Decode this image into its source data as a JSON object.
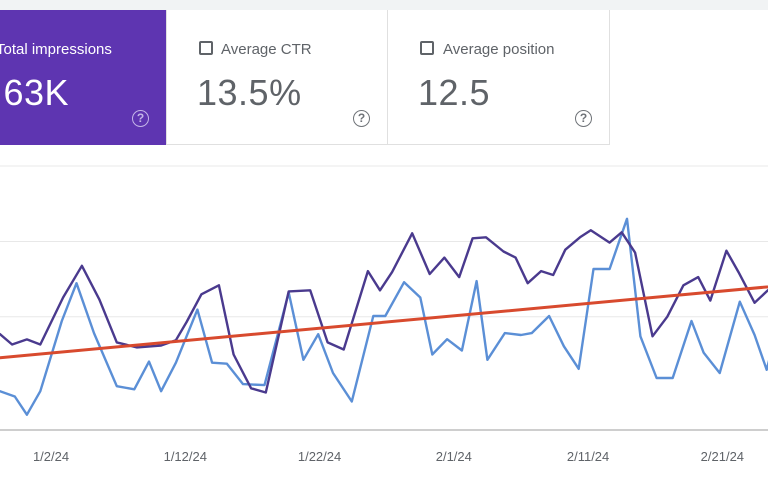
{
  "metrics": [
    {
      "label": "Total impressions",
      "value": ".63K",
      "selected": true,
      "help_icon": "help-circle-icon",
      "color": "#5e35b1"
    },
    {
      "label": "Average CTR",
      "value": "13.5%",
      "selected": false,
      "help_icon": "help-circle-icon"
    },
    {
      "label": "Average position",
      "value": "12.5",
      "selected": false,
      "help_icon": "help-circle-icon"
    }
  ],
  "help_glyph": "?",
  "colors": {
    "impressions": "#4a3a8e",
    "position": "#5b8fd6",
    "trend": "#d84a2e",
    "grid": "#e8e8e8",
    "axis": "#9e9e9e"
  },
  "chart_data": {
    "type": "line",
    "x_tick_labels": [
      "1/2/24",
      "1/12/24",
      "1/22/24",
      "2/1/24",
      "2/11/24",
      "2/21/24"
    ],
    "x_range_days": [
      -3.8,
      53.4
    ],
    "x_tick_days": [
      0,
      10,
      20,
      30,
      40,
      50
    ],
    "y_range": [
      0,
      100
    ],
    "grid": "horizontal",
    "series": [
      {
        "key": "impressions",
        "values": [
          [
            -3.8,
            36.3
          ],
          [
            -2.9,
            32.4
          ],
          [
            -1.8,
            34.3
          ],
          [
            -0.8,
            32.4
          ],
          [
            0.9,
            50.2
          ],
          [
            2.3,
            62.2
          ],
          [
            3.6,
            49.4
          ],
          [
            4.9,
            33.2
          ],
          [
            6.4,
            31.3
          ],
          [
            8.2,
            32.0
          ],
          [
            9.3,
            34.0
          ],
          [
            10.1,
            40.9
          ],
          [
            11.2,
            51.4
          ],
          [
            12.5,
            54.8
          ],
          [
            13.6,
            28.6
          ],
          [
            14.9,
            15.8
          ],
          [
            16.0,
            14.2
          ],
          [
            17.7,
            52.5
          ],
          [
            19.3,
            52.9
          ],
          [
            20.6,
            33.2
          ],
          [
            21.8,
            30.5
          ],
          [
            23.6,
            60.2
          ],
          [
            24.5,
            52.9
          ],
          [
            25.4,
            59.8
          ],
          [
            26.9,
            74.5
          ],
          [
            28.2,
            59.1
          ],
          [
            29.3,
            65.3
          ],
          [
            30.4,
            57.9
          ],
          [
            31.4,
            72.6
          ],
          [
            32.4,
            73.0
          ],
          [
            33.7,
            67.6
          ],
          [
            34.6,
            65.3
          ],
          [
            35.5,
            55.6
          ],
          [
            36.5,
            60.2
          ],
          [
            37.4,
            58.7
          ],
          [
            38.3,
            68.3
          ],
          [
            39.4,
            73.0
          ],
          [
            40.2,
            75.7
          ],
          [
            41.6,
            71.0
          ],
          [
            42.5,
            74.9
          ],
          [
            43.5,
            67.2
          ],
          [
            44.8,
            35.5
          ],
          [
            45.9,
            42.9
          ],
          [
            47.1,
            54.8
          ],
          [
            48.2,
            57.9
          ],
          [
            49.1,
            49.0
          ],
          [
            50.3,
            67.9
          ],
          [
            51.2,
            59.8
          ],
          [
            52.4,
            48.2
          ],
          [
            53.3,
            52.5
          ],
          [
            54.4,
            57.5
          ],
          [
            55.6,
            52.1
          ],
          [
            56.8,
            62.5
          ],
          [
            57.6,
            53.3
          ],
          [
            58.7,
            56.4
          ],
          [
            59.8,
            61.4
          ],
          [
            60.8,
            57.9
          ],
          [
            62.1,
            62.2
          ],
          [
            62.9,
            51.0
          ],
          [
            63.9,
            62.9
          ],
          [
            64.8,
            62.9
          ]
        ]
      },
      {
        "key": "position",
        "values": [
          [
            -3.8,
            14.7
          ],
          [
            -2.7,
            12.7
          ],
          [
            -1.8,
            5.8
          ],
          [
            -0.8,
            14.7
          ],
          [
            0.8,
            41.3
          ],
          [
            1.9,
            55.6
          ],
          [
            3.2,
            36.7
          ],
          [
            4.9,
            16.6
          ],
          [
            6.2,
            15.4
          ],
          [
            7.3,
            25.9
          ],
          [
            8.2,
            14.7
          ],
          [
            9.3,
            25.5
          ],
          [
            10.9,
            45.6
          ],
          [
            12.0,
            25.5
          ],
          [
            13.1,
            25.1
          ],
          [
            14.3,
            17.4
          ],
          [
            15.9,
            17.0
          ],
          [
            17.7,
            52.1
          ],
          [
            18.8,
            26.6
          ],
          [
            19.9,
            36.3
          ],
          [
            21.0,
            21.6
          ],
          [
            22.4,
            10.8
          ],
          [
            24.0,
            43.2
          ],
          [
            24.9,
            43.2
          ],
          [
            26.3,
            56.0
          ],
          [
            27.5,
            50.2
          ],
          [
            28.4,
            28.6
          ],
          [
            29.5,
            34.4
          ],
          [
            30.6,
            30.1
          ],
          [
            31.7,
            56.4
          ],
          [
            32.5,
            26.6
          ],
          [
            33.8,
            36.7
          ],
          [
            35.0,
            36.0
          ],
          [
            35.8,
            36.7
          ],
          [
            37.1,
            43.2
          ],
          [
            38.2,
            31.7
          ],
          [
            39.3,
            23.2
          ],
          [
            40.4,
            61.0
          ],
          [
            41.6,
            61.0
          ],
          [
            42.9,
            80.0
          ],
          [
            43.9,
            35.5
          ],
          [
            45.1,
            19.7
          ],
          [
            46.3,
            19.7
          ],
          [
            47.7,
            41.3
          ],
          [
            48.6,
            29.3
          ],
          [
            49.8,
            21.6
          ],
          [
            51.3,
            48.6
          ],
          [
            52.4,
            36.0
          ],
          [
            53.3,
            22.8
          ],
          [
            55.1,
            58.3
          ],
          [
            56.0,
            37.4
          ],
          [
            57.0,
            26.6
          ],
          [
            57.9,
            44.4
          ],
          [
            58.8,
            38.2
          ],
          [
            59.9,
            38.2
          ],
          [
            61.3,
            44.4
          ],
          [
            62.6,
            45.6
          ],
          [
            63.7,
            52.9
          ],
          [
            64.8,
            52.9
          ]
        ]
      },
      {
        "key": "trend",
        "values": [
          [
            -3.8,
            27.4
          ],
          [
            59.5,
            57.1
          ]
        ]
      }
    ]
  }
}
